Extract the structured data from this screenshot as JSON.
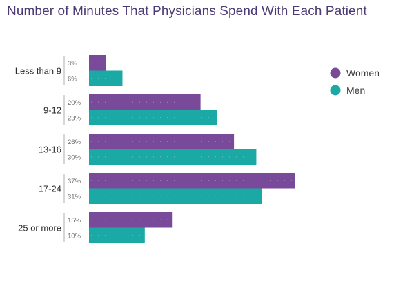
{
  "chart_data": {
    "type": "bar",
    "orientation": "horizontal",
    "title": "Number of Minutes That Physicians Spend With Each Patient",
    "categories": [
      "Less than 9",
      "9-12",
      "13-16",
      "17-24",
      "25 or more"
    ],
    "series": [
      {
        "name": "Women",
        "color": "#7a4a9a",
        "values": [
          3,
          20,
          26,
          37,
          15
        ]
      },
      {
        "name": "Men",
        "color": "#1aa9a4",
        "values": [
          6,
          23,
          30,
          31,
          10
        ]
      }
    ],
    "value_suffix": "%",
    "xlim": [
      0,
      37
    ],
    "legend": "top-right",
    "grid": false
  }
}
